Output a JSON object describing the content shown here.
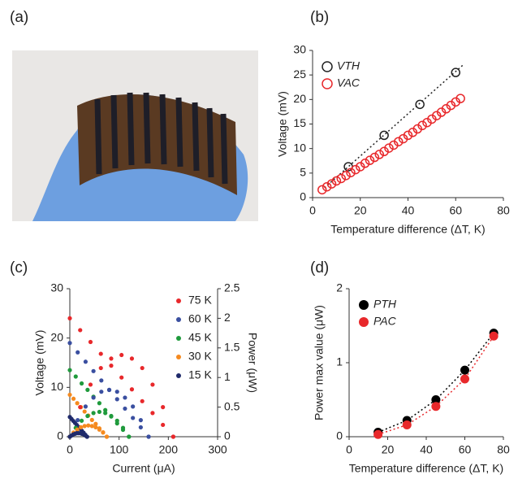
{
  "photo": {
    "label": "(a)"
  },
  "chart_data": [
    {
      "type": "scatter",
      "label": "(b)",
      "xlabel": "Temperature difference (ΔT,  K)",
      "ylabel": "Voltage (mV)",
      "xlim": [
        0,
        80
      ],
      "xticks": [
        0,
        20,
        40,
        60,
        80
      ],
      "ylim": [
        0,
        30
      ],
      "yticks": [
        0,
        5,
        10,
        15,
        20,
        25,
        30
      ],
      "legend": "upper left",
      "series": [
        {
          "name": "VTH",
          "color": "#222222",
          "marker": "open",
          "x": [
            15,
            30,
            45,
            60
          ],
          "values": [
            6.3,
            12.7,
            19,
            25.5
          ],
          "fit": {
            "x": [
              5,
              63
            ],
            "values": [
              2,
              27
            ]
          }
        },
        {
          "name": "VAC",
          "color": "#e8282b",
          "marker": "open",
          "x": [
            4,
            6,
            8,
            10,
            12,
            14,
            16,
            18,
            20,
            22,
            24,
            26,
            28,
            30,
            32,
            34,
            36,
            38,
            40,
            42,
            44,
            46,
            48,
            50,
            52,
            54,
            56,
            58,
            60,
            62
          ],
          "values": [
            1.6,
            2.2,
            2.8,
            3.4,
            3.9,
            4.5,
            5.1,
            5.7,
            6.3,
            7.0,
            7.6,
            8.2,
            8.8,
            9.4,
            10.1,
            10.7,
            11.4,
            12.0,
            12.7,
            13.3,
            14.0,
            14.7,
            15.3,
            16.0,
            16.7,
            17.4,
            18.1,
            18.8,
            19.5,
            20.2
          ]
        }
      ]
    },
    {
      "type": "scatter",
      "label": "(c)",
      "xlabel": "Current (μA)",
      "ylabel": "Voltage (mV)",
      "y2label": "Power (μW)",
      "xlim": [
        0,
        300
      ],
      "xticks": [
        0,
        100,
        200,
        300
      ],
      "ylim": [
        0,
        30
      ],
      "yticks": [
        0,
        10,
        20,
        30
      ],
      "y2lim": [
        0,
        2.5
      ],
      "y2ticks": [
        0,
        0.5,
        1,
        1.5,
        2,
        2.5
      ],
      "legend": "upper right",
      "series": [
        {
          "name": "75 K",
          "color": "#e8282b",
          "marker": "filled",
          "x": [
            0,
            21,
            42,
            63,
            84,
            105,
            126,
            147,
            168,
            189,
            210
          ],
          "values": [
            24,
            21.6,
            19.2,
            16.8,
            14.4,
            12,
            9.6,
            7.2,
            4.8,
            2.4,
            0
          ]
        },
        {
          "name": "60 K",
          "color": "#3a4fa0",
          "marker": "filled",
          "x": [
            0,
            16,
            32,
            48,
            64,
            80,
            96,
            112,
            128,
            144,
            160
          ],
          "values": [
            19,
            17.1,
            15.2,
            13.3,
            11.4,
            9.5,
            7.6,
            5.7,
            3.8,
            1.9,
            0
          ]
        },
        {
          "name": "45 K",
          "color": "#1f9a3c",
          "marker": "filled",
          "x": [
            0,
            12,
            24,
            36,
            48,
            60,
            72,
            84,
            96,
            108,
            120
          ],
          "values": [
            13.5,
            12.2,
            10.8,
            9.5,
            8.1,
            6.8,
            5.4,
            4.1,
            2.7,
            1.4,
            0
          ]
        },
        {
          "name": "30 K",
          "color": "#f58a1f",
          "marker": "filled",
          "x": [
            0,
            7.5,
            15,
            22.5,
            30,
            37.5,
            45,
            52.5,
            60,
            67.5,
            75
          ],
          "values": [
            8.5,
            7.7,
            6.8,
            6.0,
            5.1,
            4.3,
            3.4,
            2.6,
            1.7,
            0.9,
            0
          ]
        },
        {
          "name": "15 K",
          "color": "#1f2a6b",
          "marker": "filled",
          "x": [
            0,
            3.5,
            7,
            10.5,
            14,
            17.5,
            21,
            24.5,
            28,
            31.5,
            35
          ],
          "values": [
            4,
            3.6,
            3.2,
            2.8,
            2.4,
            2,
            1.6,
            1.2,
            0.8,
            0.4,
            0
          ]
        },
        {
          "axis": "y2",
          "color": "#e8282b",
          "marker": "filled",
          "x": [
            0,
            21,
            42,
            63,
            84,
            105,
            126,
            147,
            168,
            189,
            210
          ],
          "values": [
            0,
            0.5,
            0.88,
            1.16,
            1.32,
            1.38,
            1.32,
            1.16,
            0.88,
            0.5,
            0
          ]
        },
        {
          "axis": "y2",
          "color": "#3a4fa0",
          "marker": "filled",
          "x": [
            0,
            16,
            32,
            48,
            64,
            80,
            96,
            112,
            128,
            144,
            160
          ],
          "values": [
            0,
            0.28,
            0.51,
            0.66,
            0.76,
            0.79,
            0.76,
            0.66,
            0.51,
            0.28,
            0
          ]
        },
        {
          "axis": "y2",
          "color": "#1f9a3c",
          "marker": "filled",
          "x": [
            0,
            12,
            24,
            36,
            48,
            60,
            72,
            84,
            96,
            108,
            120
          ],
          "values": [
            0,
            0.15,
            0.27,
            0.35,
            0.4,
            0.42,
            0.4,
            0.35,
            0.27,
            0.15,
            0
          ]
        },
        {
          "axis": "y2",
          "color": "#f58a1f",
          "marker": "filled",
          "x": [
            0,
            7.5,
            15,
            22.5,
            30,
            37.5,
            45,
            52.5,
            60,
            67.5,
            75
          ],
          "values": [
            0,
            0.07,
            0.12,
            0.16,
            0.18,
            0.19,
            0.18,
            0.16,
            0.12,
            0.07,
            0
          ]
        },
        {
          "axis": "y2",
          "color": "#1f2a6b",
          "marker": "filled",
          "x": [
            0,
            3.5,
            7,
            10.5,
            14,
            17.5,
            21,
            24.5,
            28,
            31.5,
            35
          ],
          "values": [
            0,
            0.02,
            0.04,
            0.05,
            0.06,
            0.06,
            0.06,
            0.05,
            0.04,
            0.02,
            0
          ]
        }
      ]
    },
    {
      "type": "scatter",
      "label": "(d)",
      "xlabel": "Temperature difference (ΔT,  K)",
      "ylabel": "Power max value (μW)",
      "xlim": [
        0,
        80
      ],
      "xticks": [
        0,
        20,
        40,
        60,
        80
      ],
      "ylim": [
        0,
        2
      ],
      "yticks": [
        0,
        1,
        2
      ],
      "legend": "upper left",
      "series": [
        {
          "name": "PTH",
          "color": "#000000",
          "marker": "filled",
          "line": "dotted",
          "x": [
            15,
            30,
            45,
            60,
            75
          ],
          "values": [
            0.06,
            0.22,
            0.5,
            0.9,
            1.4
          ]
        },
        {
          "name": "PAC",
          "color": "#e8282b",
          "marker": "filled",
          "line": "dotted",
          "x": [
            15,
            30,
            45,
            60,
            75
          ],
          "values": [
            0.03,
            0.16,
            0.41,
            0.78,
            1.36
          ]
        }
      ]
    }
  ]
}
